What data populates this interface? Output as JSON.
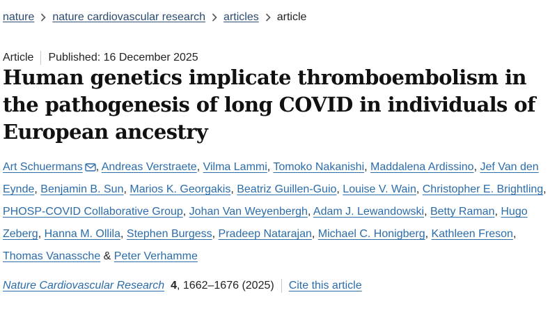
{
  "breadcrumb": {
    "items": [
      "nature",
      "nature cardiovascular research",
      "articles"
    ],
    "current": "article"
  },
  "article": {
    "type": "Article",
    "published": "Published: 16 December 2025",
    "title": "Human genetics implicate thromboembolism in the pathogenesis of long COVID in individuals of European ancestry"
  },
  "authors": [
    "Art Schuermans",
    "Andreas Verstraete",
    "Vilma Lammi",
    "Tomoko Nakanishi",
    "Maddalena Ardissino",
    "Jef Van den Eynde",
    "Benjamin B. Sun",
    "Marios K. Georgakis",
    "Beatriz Guillen-Guio",
    "Louise V. Wain",
    "Christopher E. Brightling",
    "PHOSP-COVID Collaborative Group",
    "Johan Van Weyenbergh",
    "Adam J. Lewandowski",
    "Betty Raman",
    "Hugo Zeberg",
    "Hanna M. Ollila",
    "Stephen Burgess",
    "Pradeep Natarajan",
    "Michael C. Honigberg",
    "Kathleen Freson",
    "Thomas Vanassche",
    "Peter Verhamme"
  ],
  "author_separators": {
    "comma": ",",
    "ampersand": "&"
  },
  "corresponding_icon": "envelope-icon",
  "citation": {
    "journal": "Nature Cardiovascular Research",
    "volume": "4",
    "pages": ", 1662–1676 (2025)",
    "cite_label": "Cite this article"
  },
  "colors": {
    "link": "#2b6cab",
    "breadcrumb_link": "#2b4a6f",
    "text": "#222222",
    "divider": "#c9c9c9"
  }
}
